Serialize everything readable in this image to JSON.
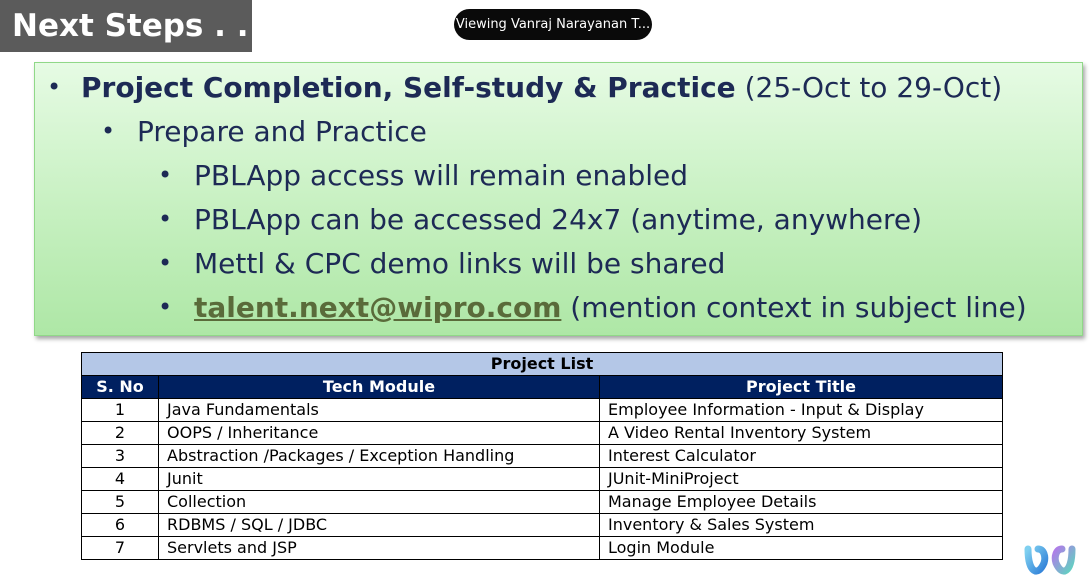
{
  "title": "Next Steps . . .",
  "viewing_label": "Viewing Vanraj Narayanan T...",
  "slide": {
    "heading_bold": "Project Completion, Self-study & Practice",
    "heading_dates": "(25-Oct to 29-Oct)",
    "sub_bullet": "Prepare and Practice",
    "items": [
      "PBLApp access will remain enabled",
      "PBLApp can be accessed 24x7 (anytime, anywhere)",
      "Mettl & CPC demo links will be shared"
    ],
    "email_link": "talent.next@wipro.com",
    "email_note": "(mention context in subject line)"
  },
  "table": {
    "caption": "Project List",
    "headers": [
      "S. No",
      "Tech Module",
      "Project Title"
    ],
    "rows": [
      [
        "1",
        "Java Fundamentals",
        "Employee Information - Input & Display"
      ],
      [
        "2",
        "OOPS / Inheritance",
        "A Video Rental Inventory System"
      ],
      [
        "3",
        "Abstraction /Packages / Exception Handling",
        "Interest Calculator"
      ],
      [
        "4",
        "Junit",
        "JUnit-MiniProject"
      ],
      [
        "5",
        "Collection",
        "Manage Employee Details"
      ],
      [
        "6",
        "RDBMS / SQL / JDBC",
        "Inventory & Sales System"
      ],
      [
        "7",
        "Servlets and JSP",
        "Login Module"
      ]
    ]
  },
  "colors": {
    "title_bg": "#5b5b5b",
    "green_box": "#c6f0c0",
    "table_header": "#002060",
    "table_caption": "#b4c7e7",
    "text_navy": "#1d2a55"
  },
  "icons": {
    "logo": "webex-logo-icon"
  }
}
